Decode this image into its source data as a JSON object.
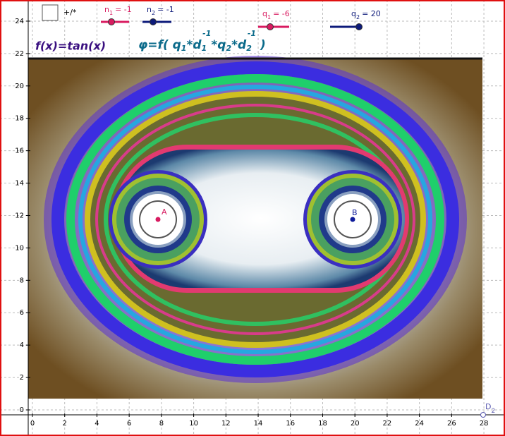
{
  "checkbox": {
    "label": "+/*"
  },
  "sliders": [
    {
      "symbol": "n",
      "subscript": "1",
      "value": "= -1",
      "color": "#d81b60"
    },
    {
      "symbol": "n",
      "subscript": "2",
      "value": "= -1",
      "color": "#0d1a7a"
    },
    {
      "symbol": "q",
      "subscript": "1",
      "value": "= -6",
      "color": "#d81b60"
    },
    {
      "symbol": "q",
      "subscript": "2",
      "value": "= 20",
      "color": "#0d1a7a"
    }
  ],
  "function_text": "f(x)=tan(x)",
  "formula": [
    [
      "text",
      "φ=f( q"
    ],
    [
      "sub",
      "1"
    ],
    [
      "text",
      "*d"
    ],
    [
      "sub",
      "1"
    ],
    [
      "sup",
      "-1"
    ],
    [
      "text",
      "*q"
    ],
    [
      "sub",
      "2"
    ],
    [
      "text",
      "*d"
    ],
    [
      "sub",
      "2"
    ],
    [
      "sup",
      "-1"
    ],
    [
      "text",
      " )"
    ]
  ],
  "points": [
    {
      "label": "A"
    },
    {
      "label": "B"
    },
    {
      "label": "D",
      "subscript": "2"
    }
  ],
  "x_axis": {
    "ticks": [
      0,
      2,
      4,
      6,
      8,
      10,
      12,
      14,
      16,
      18,
      20,
      22,
      24,
      26,
      28
    ]
  },
  "y_axis": {
    "ticks": [
      0,
      2,
      4,
      6,
      8,
      10,
      12,
      14,
      16,
      18,
      20,
      22,
      24
    ]
  }
}
